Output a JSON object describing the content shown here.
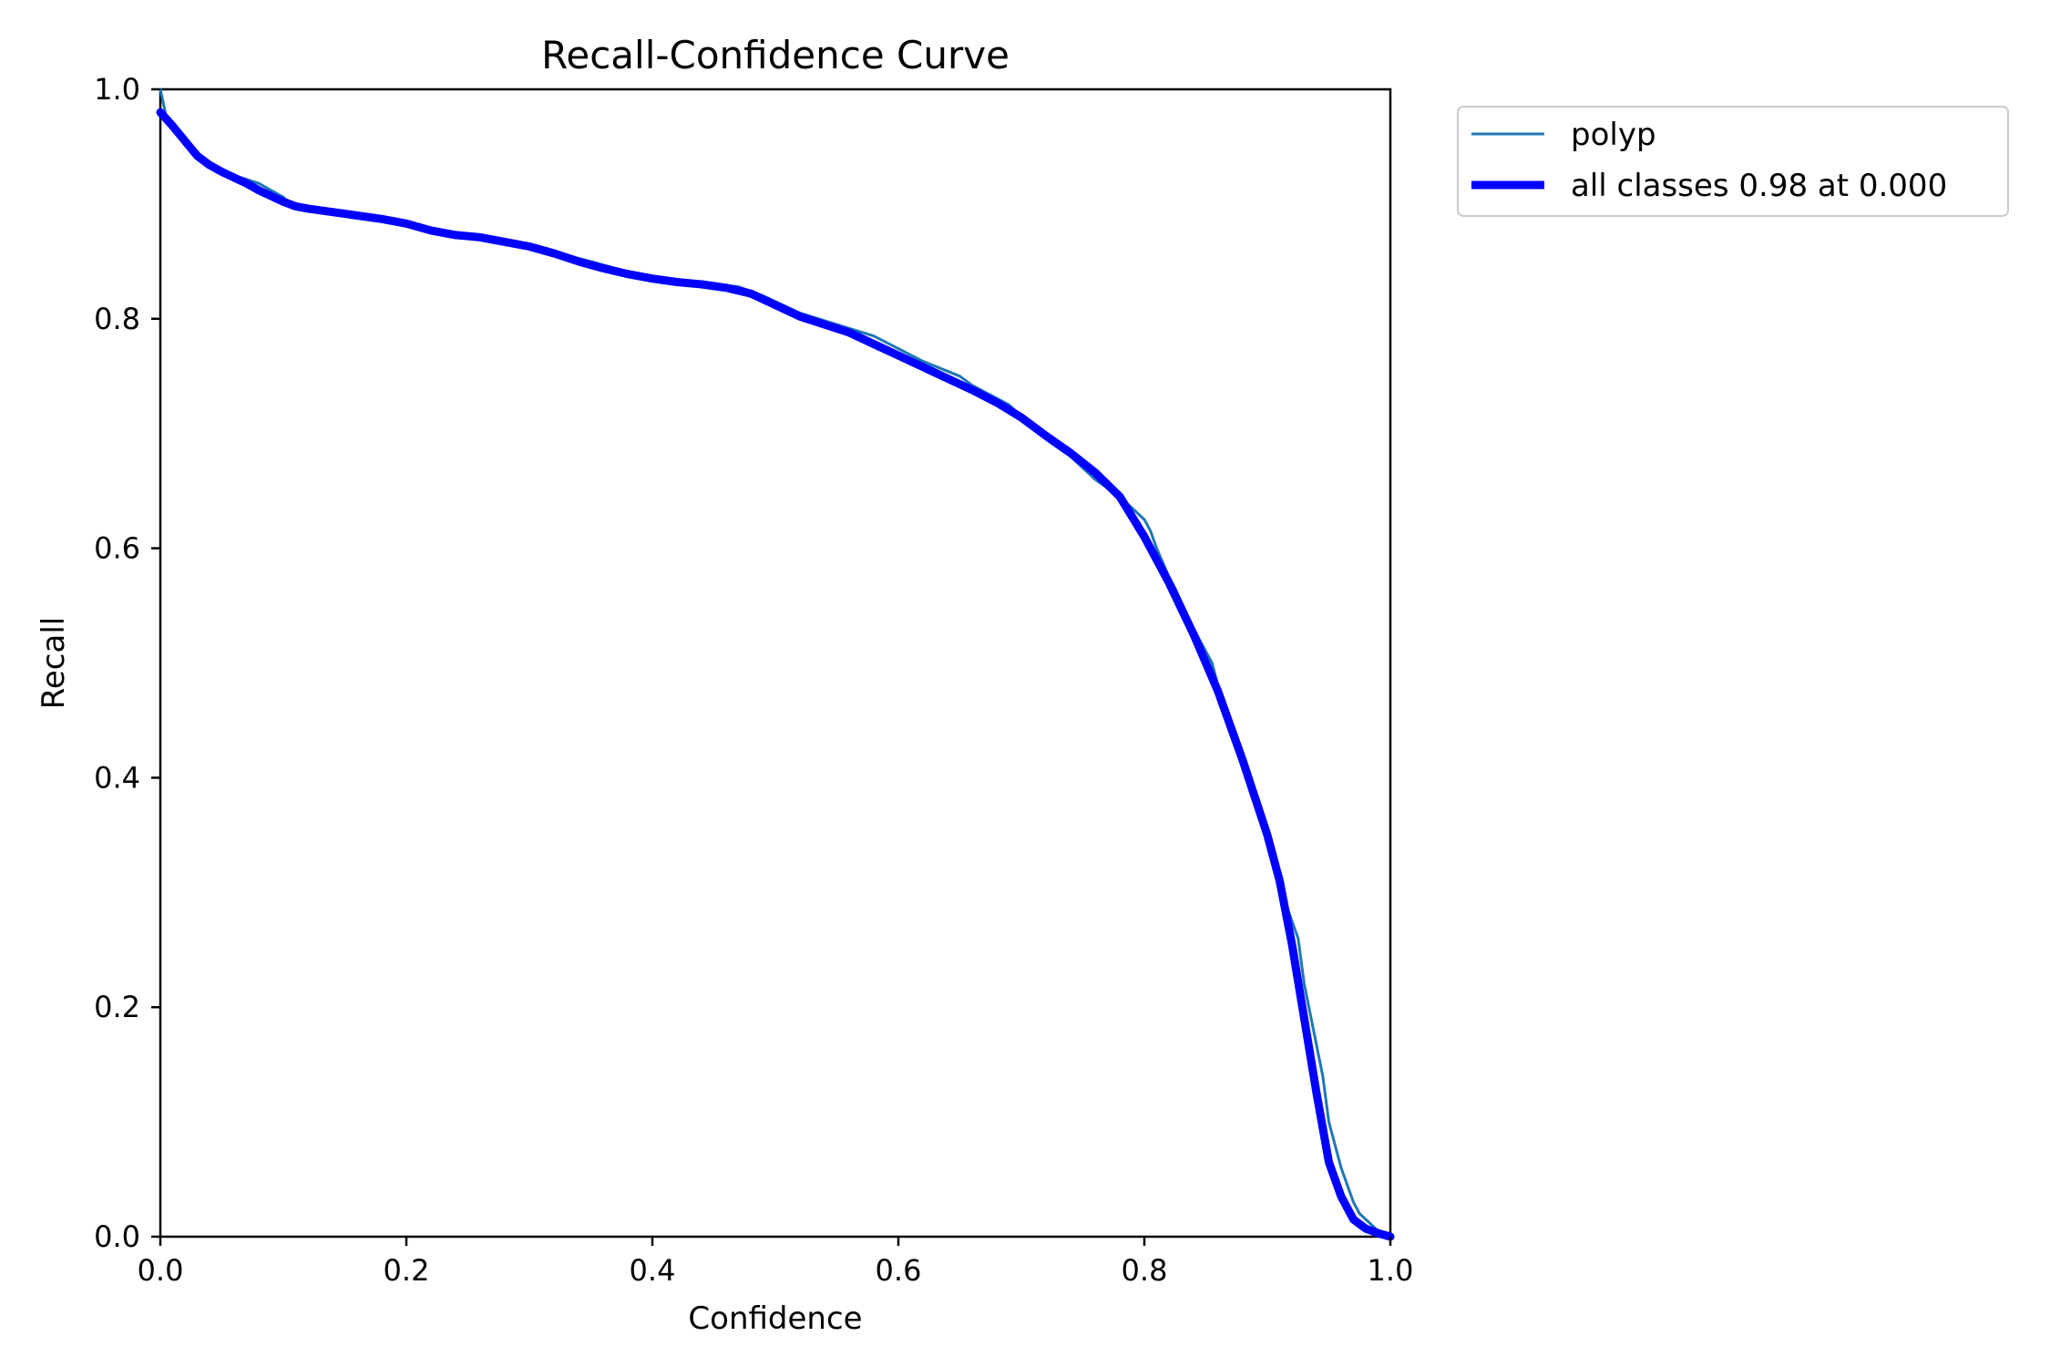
{
  "chart_data": {
    "type": "line",
    "title": "Recall-Confidence Curve",
    "xlabel": "Confidence",
    "ylabel": "Recall",
    "xlim": [
      0.0,
      1.0
    ],
    "ylim": [
      0.0,
      1.0
    ],
    "xticks": [
      "0.0",
      "0.2",
      "0.4",
      "0.6",
      "0.8",
      "1.0"
    ],
    "yticks": [
      "0.0",
      "0.2",
      "0.4",
      "0.6",
      "0.8",
      "1.0"
    ],
    "grid": false,
    "legend_position": "outside-top-right",
    "series": [
      {
        "name": "polyp",
        "color": "#1f77b4",
        "line_style": "thin",
        "x": [
          0.0,
          0.005,
          0.015,
          0.03,
          0.045,
          0.06,
          0.08,
          0.09,
          0.1,
          0.105,
          0.12,
          0.15,
          0.18,
          0.2,
          0.225,
          0.25,
          0.28,
          0.3,
          0.32,
          0.35,
          0.4,
          0.43,
          0.47,
          0.49,
          0.5,
          0.52,
          0.55,
          0.58,
          0.62,
          0.65,
          0.66,
          0.69,
          0.7,
          0.72,
          0.74,
          0.76,
          0.78,
          0.8,
          0.805,
          0.81,
          0.82,
          0.825,
          0.84,
          0.855,
          0.86,
          0.88,
          0.9,
          0.915,
          0.925,
          0.93,
          0.945,
          0.95,
          0.96,
          0.97,
          0.975,
          0.985,
          0.99,
          1.0
        ],
        "y": [
          1.0,
          0.975,
          0.958,
          0.94,
          0.932,
          0.925,
          0.918,
          0.912,
          0.906,
          0.9,
          0.898,
          0.893,
          0.888,
          0.883,
          0.875,
          0.872,
          0.866,
          0.862,
          0.858,
          0.85,
          0.835,
          0.832,
          0.828,
          0.82,
          0.815,
          0.805,
          0.795,
          0.785,
          0.763,
          0.75,
          0.742,
          0.725,
          0.715,
          0.695,
          0.68,
          0.66,
          0.645,
          0.625,
          0.615,
          0.6,
          0.575,
          0.565,
          0.53,
          0.5,
          0.48,
          0.42,
          0.35,
          0.29,
          0.26,
          0.22,
          0.14,
          0.1,
          0.06,
          0.03,
          0.02,
          0.01,
          0.005,
          0.0
        ]
      },
      {
        "name": "all classes 0.98 at 0.000",
        "color": "#0000ff",
        "line_style": "thick",
        "x": [
          0.0,
          0.01,
          0.02,
          0.03,
          0.04,
          0.05,
          0.06,
          0.07,
          0.08,
          0.09,
          0.1,
          0.11,
          0.12,
          0.14,
          0.16,
          0.18,
          0.2,
          0.22,
          0.24,
          0.26,
          0.28,
          0.3,
          0.32,
          0.34,
          0.36,
          0.38,
          0.4,
          0.42,
          0.44,
          0.46,
          0.48,
          0.5,
          0.52,
          0.54,
          0.56,
          0.58,
          0.6,
          0.62,
          0.64,
          0.66,
          0.68,
          0.7,
          0.72,
          0.74,
          0.76,
          0.78,
          0.8,
          0.82,
          0.84,
          0.86,
          0.88,
          0.9,
          0.91,
          0.92,
          0.93,
          0.94,
          0.95,
          0.96,
          0.97,
          0.98,
          0.99,
          1.0
        ],
        "y": [
          0.98,
          0.968,
          0.955,
          0.942,
          0.934,
          0.928,
          0.923,
          0.918,
          0.912,
          0.907,
          0.902,
          0.898,
          0.896,
          0.893,
          0.89,
          0.887,
          0.883,
          0.877,
          0.873,
          0.871,
          0.867,
          0.863,
          0.857,
          0.85,
          0.844,
          0.839,
          0.835,
          0.832,
          0.83,
          0.827,
          0.822,
          0.812,
          0.802,
          0.795,
          0.788,
          0.778,
          0.768,
          0.758,
          0.748,
          0.738,
          0.727,
          0.714,
          0.698,
          0.683,
          0.666,
          0.645,
          0.61,
          0.57,
          0.525,
          0.475,
          0.415,
          0.35,
          0.31,
          0.255,
          0.19,
          0.125,
          0.065,
          0.035,
          0.015,
          0.007,
          0.003,
          0.0
        ]
      }
    ]
  }
}
